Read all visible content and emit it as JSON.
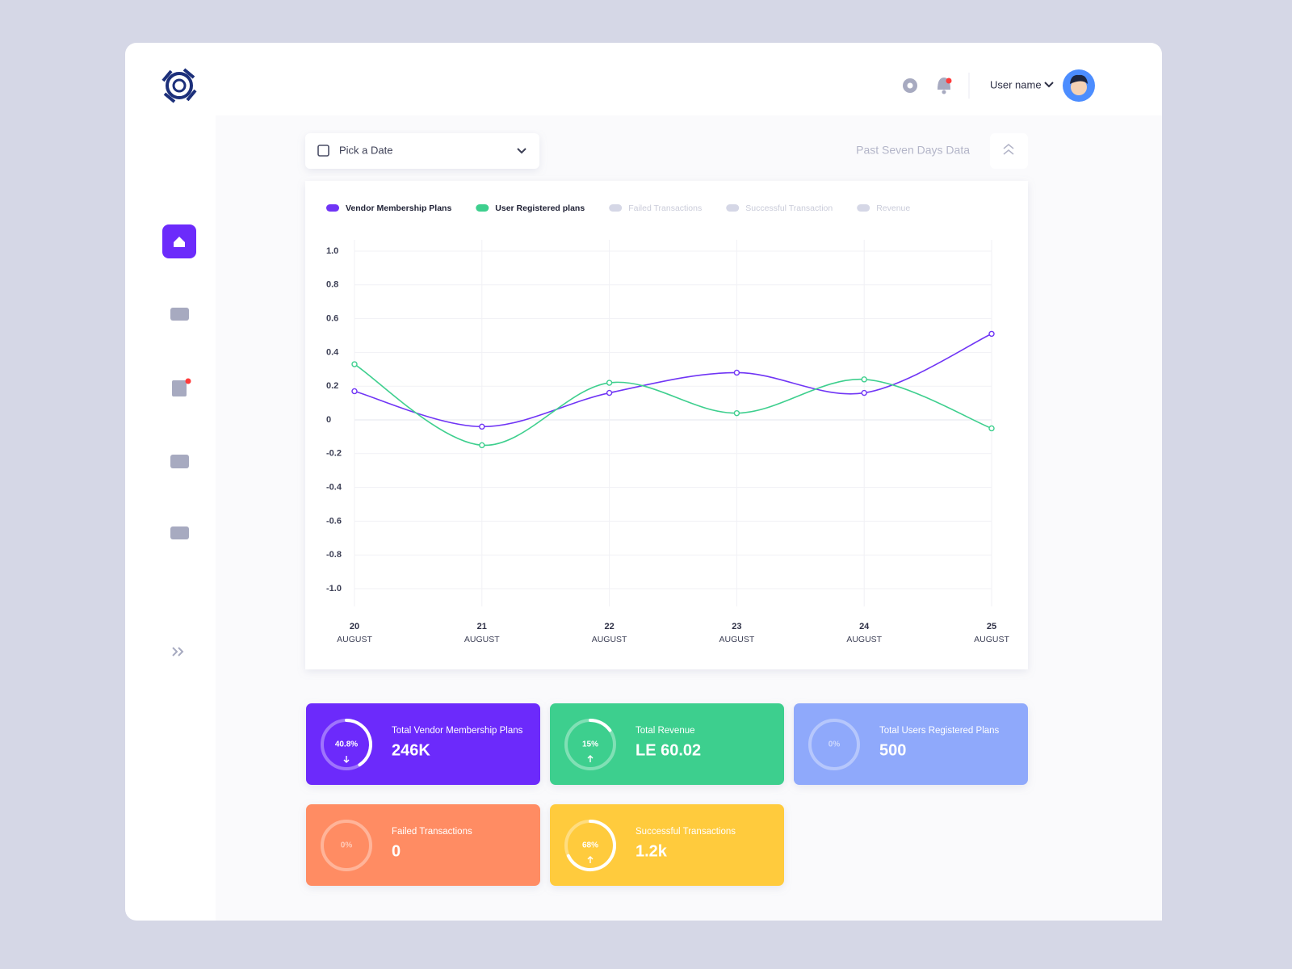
{
  "header": {
    "user_name": "User name"
  },
  "filters": {
    "date_picker": "Pick a Date",
    "range_label": "Past Seven Days Data"
  },
  "chart_data": {
    "type": "line",
    "categories": [
      {
        "day": "20",
        "month": "AUGUST"
      },
      {
        "day": "21",
        "month": "AUGUST"
      },
      {
        "day": "22",
        "month": "AUGUST"
      },
      {
        "day": "23",
        "month": "AUGUST"
      },
      {
        "day": "24",
        "month": "AUGUST"
      },
      {
        "day": "25",
        "month": "AUGUST"
      }
    ],
    "series": [
      {
        "name": "Vendor Membership Plans",
        "color": "#7035f5",
        "values": [
          0.17,
          -0.04,
          0.16,
          0.28,
          0.16,
          0.51
        ]
      },
      {
        "name": "User Registered plans",
        "color": "#3ecf8e",
        "values": [
          0.33,
          -0.15,
          0.22,
          0.04,
          0.24,
          -0.05
        ]
      }
    ],
    "hidden_series": [
      "Failed Transactions",
      "Successful Transaction",
      "Revenue"
    ],
    "ylim": [
      -1,
      1
    ],
    "yticks": [
      {
        "value": 1,
        "label": "1.0"
      },
      0.8,
      0.6,
      0.4,
      0.2,
      0,
      -0.2,
      -0.4,
      -0.6,
      -0.8,
      {
        "value": -1,
        "label": "-1.0"
      }
    ],
    "grid": true,
    "legend": "top-left"
  },
  "cards": [
    {
      "title": "Total Vendor Membership Plans",
      "value": "246K",
      "ring": {
        "value": 40.8,
        "label": "40.8%"
      },
      "trend": "down",
      "color": "#6c2bfb"
    },
    {
      "title": "Total Revenue",
      "value": "LE 60.02",
      "ring": {
        "value": 15,
        "label": "15%"
      },
      "trend": "up",
      "color": "#3ecf8e"
    },
    {
      "title": "Total Users Registered Plans",
      "value": "500",
      "ring": {
        "value": 0,
        "label": "0%"
      },
      "trend": "none",
      "color": "#8fa9fb"
    },
    {
      "title": "Failed Transactions",
      "value": "0",
      "ring": {
        "value": 0,
        "label": "0%"
      },
      "trend": "none",
      "color": "#ff8c64"
    },
    {
      "title": "Successful Transactions",
      "value": "1.2k",
      "ring": {
        "value": 68,
        "label": "68%"
      },
      "trend": "up",
      "color": "#ffcb3d"
    }
  ]
}
